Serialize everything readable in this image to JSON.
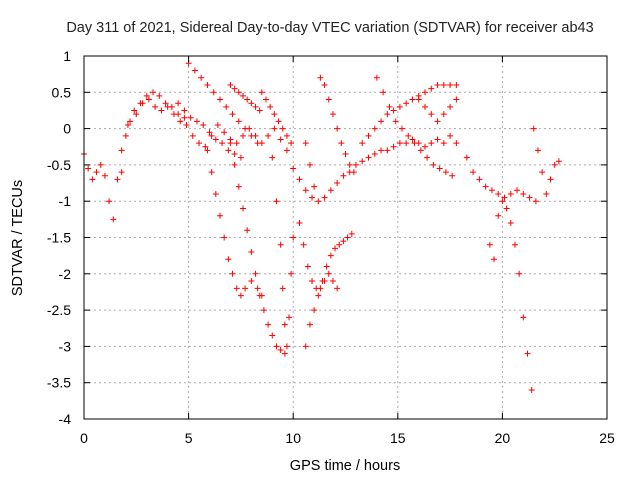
{
  "chart_data": {
    "type": "scatter",
    "title": "Day 311 of 2021, Sidereal Day-to-day VTEC variation (SDTVAR) for receiver ab43",
    "xlabel": "GPS time / hours",
    "ylabel": "SDTVAR / TECUs",
    "xlim": [
      0,
      25
    ],
    "ylim": [
      -4,
      1
    ],
    "xticks": [
      0,
      5,
      10,
      15,
      20,
      25
    ],
    "xtick_labels": [
      "0",
      "5",
      "10",
      "15",
      "20",
      "25"
    ],
    "yticks": [
      1,
      0.5,
      0,
      -0.5,
      -1,
      -1.5,
      -2,
      -2.5,
      -3,
      -3.5,
      -4
    ],
    "ytick_labels": [
      "1",
      "0.5",
      "0",
      "-0.5",
      "-1",
      "-1.5",
      "-2",
      "-2.5",
      "-3",
      "-3.5",
      "-4"
    ],
    "grid": true,
    "marker": "+",
    "marker_color": "#ff0000",
    "series": [
      {
        "name": "s1",
        "x": [
          0,
          0.2,
          0.4,
          0.6,
          0.8,
          1.0,
          1.2,
          1.4,
          1.6,
          1.8,
          2.0,
          2.2,
          2.5,
          2.8,
          3.1,
          3.4,
          3.7,
          4.0,
          4.3,
          4.6,
          4.9,
          5.2,
          5.5,
          5.8,
          6.1,
          6.4,
          6.7,
          7.0,
          7.3,
          7.6,
          7.9,
          8.2,
          8.5,
          8.8,
          9.1,
          9.4,
          9.7,
          10.0,
          10.3,
          10.6,
          10.9,
          11.2,
          11.5,
          11.8,
          12.1,
          12.4,
          12.7,
          13.0,
          13.3,
          13.6,
          13.9,
          14.2,
          14.5,
          14.8,
          15.1,
          15.4,
          15.7,
          16.0,
          16.3,
          16.6,
          16.9,
          17.2,
          17.5,
          17.8
        ],
        "y": [
          -0.35,
          -0.55,
          -0.7,
          -0.6,
          -0.5,
          -0.65,
          -1.0,
          -1.25,
          -0.7,
          -0.6,
          -0.1,
          0.1,
          0.2,
          0.35,
          0.4,
          0.3,
          0.25,
          0.3,
          0.2,
          0.1,
          0.05,
          -0.1,
          -0.2,
          -0.25,
          -0.1,
          0.05,
          -0.05,
          -0.15,
          -0.2,
          -0.1,
          0.0,
          -0.1,
          -0.2,
          -0.1,
          0.0,
          -0.15,
          -0.3,
          -0.55,
          -0.7,
          -0.85,
          -0.95,
          -1.0,
          -0.95,
          -0.85,
          -0.75,
          -0.65,
          -0.6,
          -0.5,
          -0.45,
          -0.4,
          -0.35,
          -0.3,
          -0.3,
          -0.25,
          -0.2,
          -0.2,
          -0.15,
          -0.2,
          -0.25,
          -0.2,
          -0.15,
          -0.2,
          -0.1,
          -0.2
        ]
      },
      {
        "name": "s2",
        "x": [
          1.8,
          2.1,
          2.4,
          2.7,
          3.0,
          3.3,
          3.6,
          3.9,
          4.2,
          4.5,
          4.8
        ],
        "y": [
          -0.3,
          0.05,
          0.25,
          0.35,
          0.45,
          0.5,
          0.45,
          0.35,
          0.3,
          0.2,
          0.15
        ]
      },
      {
        "name": "s3",
        "x": [
          4.5,
          4.8,
          5.1,
          5.4,
          5.7,
          6.0,
          6.3,
          6.6,
          6.9,
          7.2,
          7.5
        ],
        "y": [
          0.35,
          0.25,
          0.15,
          0.1,
          0.05,
          -0.05,
          -0.15,
          -0.2,
          -0.3,
          -0.35,
          -0.4
        ]
      },
      {
        "name": "s4",
        "x": [
          5.0,
          5.3,
          5.6,
          5.9,
          6.2,
          6.5,
          6.8,
          7.1,
          7.4,
          7.7,
          8.0,
          8.3
        ],
        "y": [
          0.9,
          0.8,
          0.7,
          0.6,
          0.5,
          0.4,
          0.3,
          0.2,
          0.1,
          0.0,
          -0.1,
          -0.2
        ]
      },
      {
        "name": "s5",
        "x": [
          5.9,
          6.1,
          6.3,
          6.5,
          6.7,
          6.9,
          7.1,
          7.3,
          7.5,
          7.7,
          8.0,
          8.3,
          8.5
        ],
        "y": [
          -0.3,
          -0.6,
          -0.9,
          -1.2,
          -1.5,
          -1.8,
          -2.0,
          -2.2,
          -2.3,
          -2.2,
          -2.1,
          -2.2,
          -2.3
        ]
      },
      {
        "name": "s6",
        "x": [
          7.0,
          7.2,
          7.4,
          7.6,
          7.8,
          8.0,
          8.2,
          8.4,
          8.6,
          8.8,
          9.0,
          9.2,
          9.4,
          9.6
        ],
        "y": [
          -0.2,
          -0.5,
          -0.8,
          -1.1,
          -1.4,
          -1.7,
          -2.0,
          -2.3,
          -2.5,
          -2.7,
          -2.85,
          -3.0,
          -3.05,
          -3.1
        ]
      },
      {
        "name": "s7",
        "x": [
          7.0,
          7.2,
          7.4,
          7.6,
          7.8,
          8.0,
          8.2,
          8.4
        ],
        "y": [
          0.6,
          0.55,
          0.5,
          0.45,
          0.4,
          0.35,
          0.3,
          0.25
        ]
      },
      {
        "name": "s8",
        "x": [
          8.5,
          8.7,
          8.9,
          9.1,
          9.3,
          9.5,
          9.7,
          9.9
        ],
        "y": [
          0.5,
          0.4,
          0.3,
          0.2,
          0.1,
          0.0,
          -0.1,
          -0.2
        ]
      },
      {
        "name": "s9",
        "x": [
          9.0,
          9.2,
          9.4,
          9.5,
          9.6,
          9.7,
          9.8,
          9.9,
          10.0
        ],
        "y": [
          -0.4,
          -1.0,
          -1.6,
          -2.2,
          -2.7,
          -3.0,
          -2.6,
          -2.0,
          -1.5
        ]
      },
      {
        "name": "s10",
        "x": [
          10.6,
          10.8,
          11.0,
          11.2,
          11.4,
          11.6,
          11.8,
          12.0,
          12.2,
          12.4,
          12.6,
          12.8
        ],
        "y": [
          -3.0,
          -2.7,
          -2.5,
          -2.3,
          -2.1,
          -1.9,
          -1.75,
          -1.65,
          -1.6,
          -1.55,
          -1.5,
          -1.45
        ]
      },
      {
        "name": "s11",
        "x": [
          10.3,
          10.5,
          10.7,
          10.9,
          11.1,
          11.3,
          11.5,
          11.7,
          11.9,
          12.1
        ],
        "y": [
          -1.3,
          -1.6,
          -1.9,
          -2.1,
          -2.2,
          -2.2,
          -2.1,
          -2.0,
          -2.1,
          -2.2
        ]
      },
      {
        "name": "s12",
        "x": [
          11.3,
          11.5,
          11.7,
          11.9,
          12.1,
          12.3,
          12.5,
          12.7,
          12.9
        ],
        "y": [
          0.7,
          0.6,
          0.4,
          0.2,
          0.0,
          -0.2,
          -0.35,
          -0.5,
          -0.6
        ]
      },
      {
        "name": "s13",
        "x": [
          10.6,
          10.8,
          11.0
        ],
        "y": [
          -0.2,
          -0.5,
          -0.8
        ]
      },
      {
        "name": "s14",
        "x": [
          13.3,
          13.6,
          13.9,
          14.2,
          14.5,
          14.8,
          15.1,
          15.4,
          15.7,
          16.0,
          16.3,
          16.6,
          16.9,
          17.2,
          17.5,
          17.8
        ],
        "y": [
          -0.2,
          -0.1,
          0.0,
          0.1,
          0.2,
          0.25,
          0.3,
          0.35,
          0.4,
          0.45,
          0.5,
          0.55,
          0.6,
          0.6,
          0.6,
          0.6
        ]
      },
      {
        "name": "s15",
        "x": [
          14.0,
          14.3,
          14.6,
          14.9,
          15.2,
          15.5,
          15.8,
          16.1,
          16.4,
          16.7,
          17.0,
          17.3,
          17.6
        ],
        "y": [
          0.7,
          0.5,
          0.3,
          0.1,
          0.0,
          -0.1,
          -0.2,
          -0.3,
          -0.4,
          -0.5,
          -0.55,
          -0.6,
          -0.65
        ]
      },
      {
        "name": "s16",
        "x": [
          16.0,
          16.3,
          16.6,
          16.9,
          17.2,
          17.5,
          17.8
        ],
        "y": [
          0.4,
          0.3,
          0.2,
          0.1,
          0.2,
          0.3,
          0.4
        ]
      },
      {
        "name": "s17",
        "x": [
          18.3,
          18.6,
          18.9,
          19.2,
          19.5,
          19.8,
          20.1,
          20.4,
          20.7,
          21.0,
          21.3,
          21.6
        ],
        "y": [
          -0.4,
          -0.6,
          -0.7,
          -0.8,
          -0.85,
          -0.9,
          -0.95,
          -0.9,
          -0.85,
          -0.9,
          -0.95,
          -1.0
        ]
      },
      {
        "name": "s18",
        "x": [
          19.4,
          19.6,
          19.8,
          20.0,
          20.2,
          20.4,
          20.6,
          20.8,
          21.0,
          21.2,
          21.4
        ],
        "y": [
          -1.6,
          -1.8,
          -1.2,
          -1.0,
          -1.1,
          -1.3,
          -1.6,
          -2.0,
          -2.6,
          -3.1,
          -3.6
        ]
      },
      {
        "name": "s19",
        "x": [
          21.5,
          21.7,
          21.9,
          22.1,
          22.3,
          22.5,
          22.7
        ],
        "y": [
          0.0,
          -0.3,
          -0.6,
          -0.9,
          -0.7,
          -0.5,
          -0.45
        ]
      }
    ]
  }
}
